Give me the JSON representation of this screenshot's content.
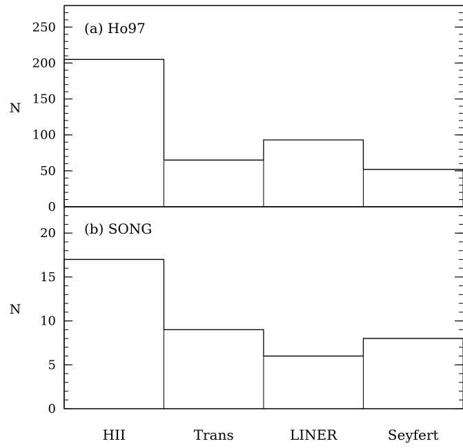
{
  "chart_data": [
    {
      "type": "bar",
      "panel_label": "(a) Ho97",
      "categories": [
        "HII",
        "Trans",
        "LINER",
        "Seyfert"
      ],
      "values": [
        205,
        65,
        93,
        52
      ],
      "ylabel": "N",
      "ylim": [
        0,
        280
      ],
      "major_ticks": [
        0,
        50,
        100,
        150,
        200,
        250
      ],
      "minor_step": 10,
      "style": "histogram-step"
    },
    {
      "type": "bar",
      "panel_label": "(b) SONG",
      "categories": [
        "HII",
        "Trans",
        "LINER",
        "Seyfert"
      ],
      "values": [
        17,
        9,
        6,
        8
      ],
      "ylabel": "N",
      "ylim": [
        0,
        23
      ],
      "major_ticks": [
        0,
        5,
        10,
        15,
        20
      ],
      "minor_step": 1,
      "style": "histogram-step"
    }
  ]
}
